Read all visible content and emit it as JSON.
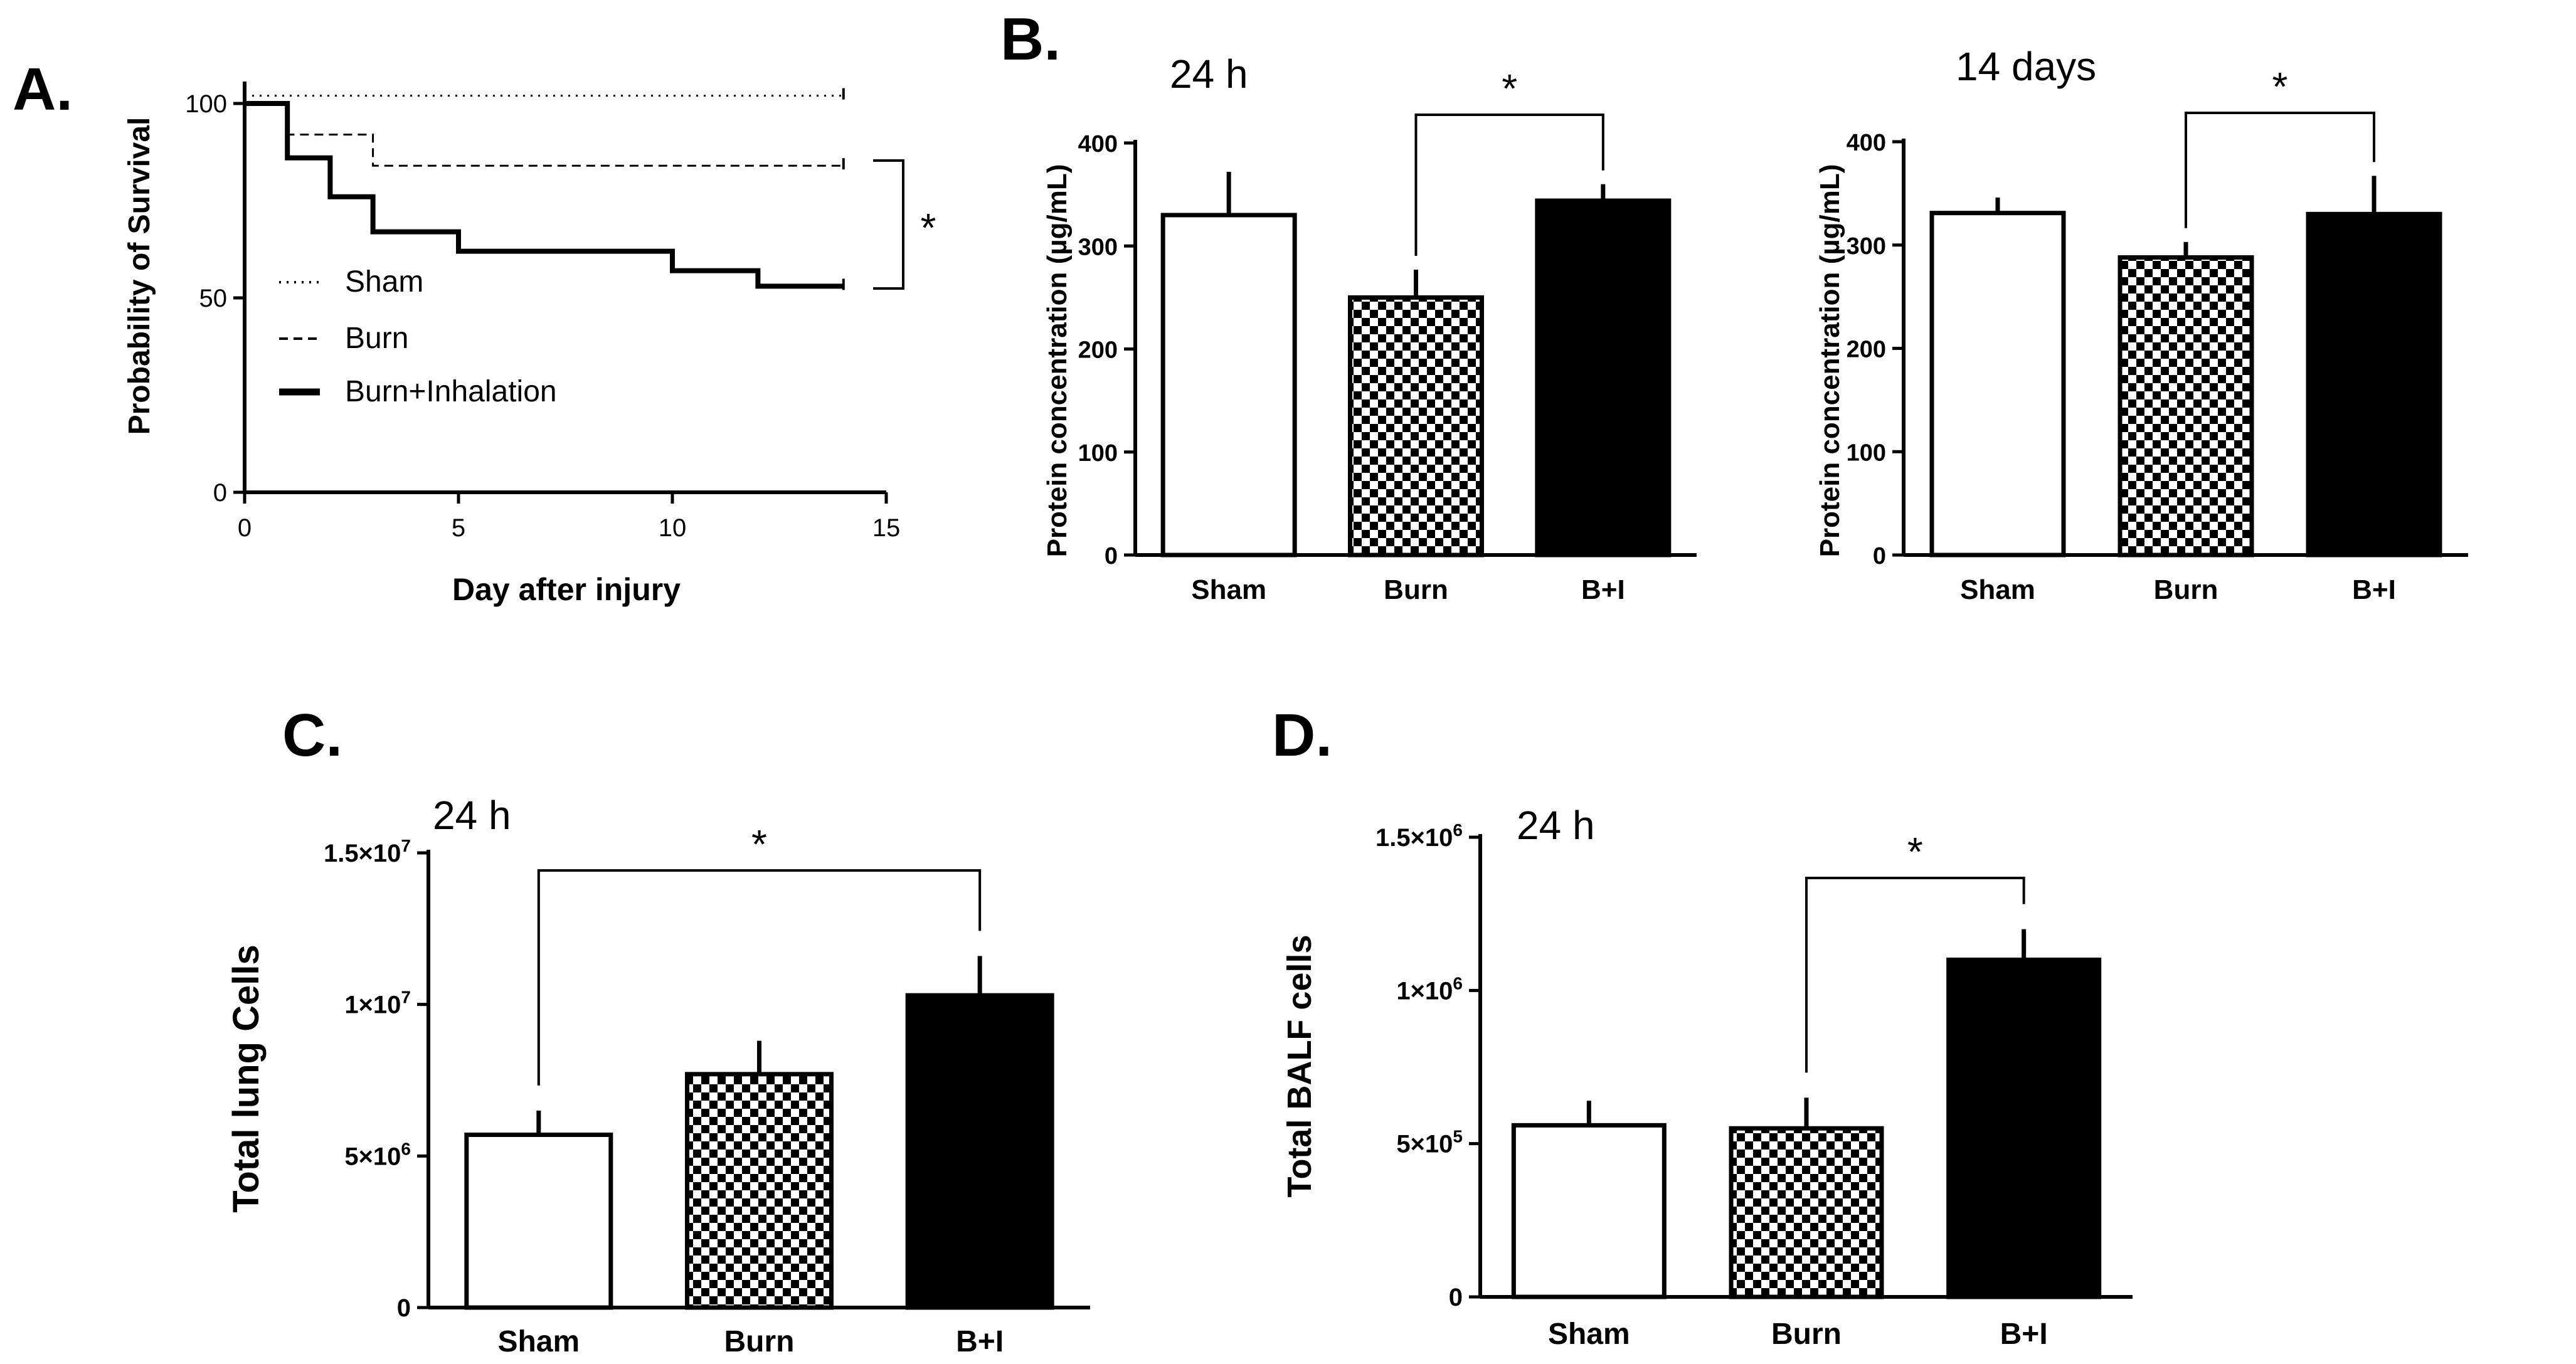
{
  "chart_data": [
    {
      "id": "A",
      "type": "line",
      "panel_label": "A.",
      "title": "",
      "xlabel": "Day after injury",
      "ylabel": "Probability of Survival",
      "xlim": [
        0,
        15
      ],
      "ylim": [
        0,
        100
      ],
      "xticks": [
        "0",
        "5",
        "10",
        "15"
      ],
      "yticks": [
        "0",
        "50",
        "100"
      ],
      "legend_position": "left-middle",
      "series": [
        {
          "name": "Sham",
          "style": "dotted",
          "width": 3,
          "x": [
            0,
            14
          ],
          "y": [
            102,
            102
          ]
        },
        {
          "name": "Burn",
          "style": "dashed",
          "width": 3,
          "x": [
            0,
            1,
            1,
            3,
            3,
            14
          ],
          "y": [
            100,
            100,
            92,
            92,
            84,
            84
          ]
        },
        {
          "name": "Burn+Inhalation",
          "style": "solid",
          "width": 8,
          "x": [
            0,
            1,
            1,
            2,
            2,
            3,
            3,
            5,
            5,
            10,
            10,
            12,
            12,
            14
          ],
          "y": [
            100,
            100,
            86,
            86,
            76,
            76,
            67,
            67,
            62,
            62,
            57,
            57,
            53,
            53
          ]
        }
      ],
      "significance": "*"
    },
    {
      "id": "B1",
      "type": "bar",
      "panel_label": "B.",
      "subtitle": "24 h",
      "ylabel": "Protein concentration (µg/mL)",
      "ylim": [
        0,
        400
      ],
      "yticks": [
        "0",
        "100",
        "200",
        "300",
        "400"
      ],
      "categories": [
        "Sham",
        "Burn",
        "B+I"
      ],
      "values": [
        330,
        250,
        344
      ],
      "errors": [
        42,
        27,
        16
      ],
      "fills": [
        "white",
        "checker",
        "black"
      ],
      "significance": [
        {
          "from": 1,
          "to": 2,
          "label": "*"
        }
      ]
    },
    {
      "id": "B2",
      "type": "bar",
      "panel_label": "",
      "subtitle": "14 days",
      "ylabel": "Protein concentration (µg/mL)",
      "ylim": [
        0,
        400
      ],
      "yticks": [
        "0",
        "100",
        "200",
        "300",
        "400"
      ],
      "categories": [
        "Sham",
        "Burn",
        "B+I"
      ],
      "values": [
        331,
        288,
        330
      ],
      "errors": [
        15,
        15,
        37
      ],
      "fills": [
        "white",
        "checker",
        "black"
      ],
      "significance": [
        {
          "from": 1,
          "to": 2,
          "label": "*"
        }
      ]
    },
    {
      "id": "C",
      "type": "bar",
      "panel_label": "C.",
      "subtitle": "24 h",
      "ylabel": "Total lung Cells",
      "ylim": [
        0,
        15000000
      ],
      "ytick_values": [
        0,
        5000000,
        10000000,
        15000000
      ],
      "yticks": [
        {
          "base": "0",
          "exp": ""
        },
        {
          "base": "5×10",
          "exp": "6"
        },
        {
          "base": "1×10",
          "exp": "7"
        },
        {
          "base": "1.5×10",
          "exp": "7"
        }
      ],
      "categories": [
        "Sham",
        "Burn",
        "B+I"
      ],
      "values": [
        5700000,
        7700000,
        10300000
      ],
      "errors": [
        800000,
        1100000,
        1300000
      ],
      "fills": [
        "white",
        "checker",
        "black"
      ],
      "significance": [
        {
          "from": 0,
          "to": 2,
          "label": "*"
        }
      ]
    },
    {
      "id": "D",
      "type": "bar",
      "panel_label": "D.",
      "subtitle": "24 h",
      "ylabel": "Total BALF cells",
      "ylim": [
        0,
        1500000
      ],
      "ytick_values": [
        0,
        500000,
        1000000,
        1500000
      ],
      "yticks": [
        {
          "base": "0",
          "exp": ""
        },
        {
          "base": "5×10",
          "exp": "5"
        },
        {
          "base": "1×10",
          "exp": "6"
        },
        {
          "base": "1.5×10",
          "exp": "6"
        }
      ],
      "categories": [
        "Sham",
        "Burn",
        "B+I"
      ],
      "values": [
        560000,
        550000,
        1100000
      ],
      "errors": [
        80000,
        100000,
        100000
      ],
      "fills": [
        "white",
        "checker",
        "black"
      ],
      "significance": [
        {
          "from": 1,
          "to": 2,
          "label": "*"
        }
      ]
    }
  ]
}
